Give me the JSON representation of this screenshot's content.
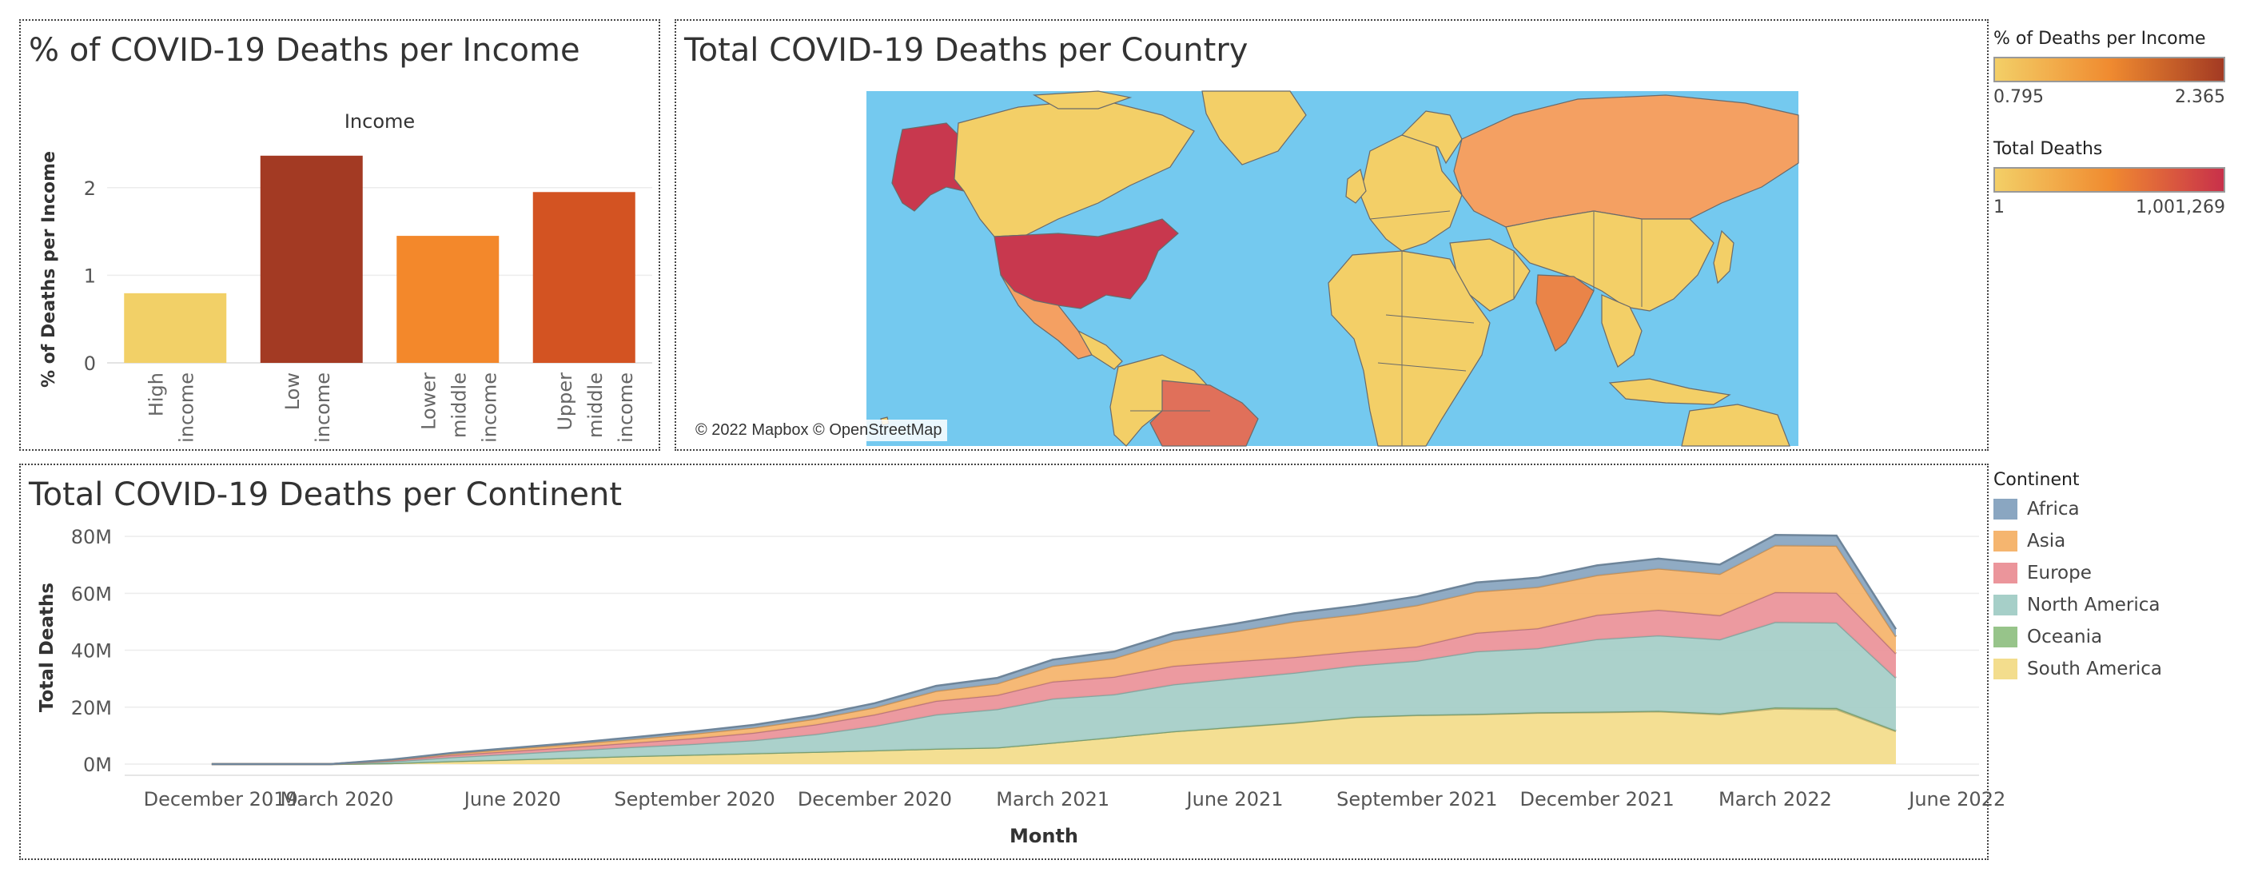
{
  "panels": {
    "income_title": "% of COVID-19 Deaths per Income",
    "map_title": "Total COVID-19 Deaths per Country",
    "continent_title": "Total COVID-19 Deaths per Continent",
    "map_attribution": "© 2022 Mapbox © OpenStreetMap"
  },
  "legends": {
    "income_legend": {
      "title": "% of Deaths per Income",
      "min_label": "0.795",
      "max_label": "2.365",
      "colors": [
        "#f3cf67",
        "#f08b30",
        "#a33a23"
      ]
    },
    "deaths_legend": {
      "title": "Total Deaths",
      "min_label": "1",
      "max_label": "1,001,269",
      "colors": [
        "#f3cf67",
        "#f08b30",
        "#c8304a"
      ]
    },
    "continent_legend": {
      "title": "Continent",
      "items": [
        {
          "label": "Africa",
          "color": "#8aa6c1"
        },
        {
          "label": "Asia",
          "color": "#f5b56f"
        },
        {
          "label": "Europe",
          "color": "#eb959b"
        },
        {
          "label": "North America",
          "color": "#a6cfc8"
        },
        {
          "label": "Oceania",
          "color": "#97c48a"
        },
        {
          "label": "South America",
          "color": "#f3dd8d"
        }
      ]
    }
  },
  "chart_data": [
    {
      "type": "bar",
      "title": "% of COVID-19 Deaths per Income",
      "column_header": "Income",
      "ylabel": "% of Deaths per Income",
      "xlabel": "",
      "categories": [
        [
          "High",
          "income"
        ],
        [
          "Low",
          "income"
        ],
        [
          "Lower",
          "middle",
          "income"
        ],
        [
          "Upper",
          "middle",
          "income"
        ]
      ],
      "values": [
        0.795,
        2.365,
        1.45,
        1.95
      ],
      "colors": [
        "#f2d067",
        "#a33a23",
        "#f3882b",
        "#d35322"
      ],
      "ylim": [
        0,
        2.5
      ],
      "yticks": [
        0,
        1,
        2
      ],
      "grid": true
    },
    {
      "type": "area",
      "title": "Total COVID-19 Deaths per Continent",
      "xlabel": "Month",
      "ylabel": "Total Deaths",
      "xticks": [
        {
          "label": "December 2019",
          "date": "2019-12"
        },
        {
          "label": "March 2020",
          "date": "2020-03"
        },
        {
          "label": "June 2020",
          "date": "2020-06"
        },
        {
          "label": "September 2020",
          "date": "2020-09"
        },
        {
          "label": "December 2020",
          "date": "2020-12"
        },
        {
          "label": "March 2021",
          "date": "2021-03"
        },
        {
          "label": "June 2021",
          "date": "2021-06"
        },
        {
          "label": "September 2021",
          "date": "2021-09"
        },
        {
          "label": "December 2021",
          "date": "2021-12"
        },
        {
          "label": "March 2022",
          "date": "2022-03"
        },
        {
          "label": "June 2022",
          "date": "2022-06"
        }
      ],
      "yticks": [
        {
          "label": "0M",
          "value": 0
        },
        {
          "label": "20M",
          "value": 20
        },
        {
          "label": "40M",
          "value": 40
        },
        {
          "label": "60M",
          "value": 60
        },
        {
          "label": "80M",
          "value": 80
        }
      ],
      "ylim": [
        0,
        82
      ],
      "x": [
        "2020-01",
        "2020-02",
        "2020-03",
        "2020-04",
        "2020-05",
        "2020-06",
        "2020-07",
        "2020-08",
        "2020-09",
        "2020-10",
        "2020-11",
        "2020-12",
        "2021-01",
        "2021-02",
        "2021-03",
        "2021-04",
        "2021-05",
        "2021-06",
        "2021-07",
        "2021-08",
        "2021-09",
        "2021-10",
        "2021-11",
        "2021-12",
        "2022-01",
        "2022-02",
        "2022-03",
        "2022-04",
        "2022-05"
      ],
      "series": [
        {
          "name": "South America",
          "color": "#f3dd8d",
          "values": [
            0,
            0,
            0,
            0.3,
            1.0,
            1.6,
            2.2,
            2.8,
            3.3,
            3.8,
            4.3,
            4.8,
            5.4,
            5.8,
            7.5,
            9.5,
            11.5,
            13.0,
            14.5,
            16.5,
            17.2,
            17.5,
            18.0,
            18.2,
            18.5,
            17.5,
            19.5,
            19.2,
            11.5
          ]
        },
        {
          "name": "Oceania",
          "color": "#97c48a",
          "values": [
            0,
            0,
            0,
            0,
            0,
            0,
            0,
            0,
            0,
            0,
            0,
            0,
            0,
            0,
            0,
            0,
            0,
            0.1,
            0.1,
            0.1,
            0.1,
            0.1,
            0.2,
            0.2,
            0.2,
            0.3,
            0.4,
            0.5,
            0.3
          ]
        },
        {
          "name": "North America",
          "color": "#a6cfc8",
          "values": [
            0,
            0,
            0,
            0.6,
            1.4,
            2.0,
            2.6,
            3.2,
            3.8,
            4.6,
            6.2,
            8.6,
            12.0,
            13.5,
            15.5,
            15.0,
            16.5,
            17.0,
            17.5,
            18.0,
            19.0,
            22.0,
            22.5,
            25.5,
            26.5,
            26.0,
            30.0,
            30.0,
            18.5
          ]
        },
        {
          "name": "Europe",
          "color": "#eb959b",
          "values": [
            0,
            0,
            0,
            0.4,
            0.8,
            1.0,
            1.2,
            1.5,
            2.0,
            2.6,
            3.4,
            4.0,
            4.8,
            5.0,
            6.0,
            6.2,
            6.5,
            6.0,
            5.5,
            5.0,
            5.0,
            6.5,
            7.0,
            8.5,
            9.0,
            8.5,
            10.5,
            10.5,
            8.5
          ]
        },
        {
          "name": "Asia",
          "color": "#f5b56f",
          "values": [
            0,
            0,
            0,
            0.2,
            0.5,
            0.8,
            1.0,
            1.3,
            1.6,
            1.8,
            2.0,
            2.5,
            3.5,
            4.0,
            5.5,
            6.5,
            9.0,
            10.5,
            12.5,
            13.0,
            14.5,
            14.5,
            14.5,
            14.0,
            14.5,
            14.5,
            16.5,
            16.5,
            6.0
          ]
        },
        {
          "name": "Africa",
          "color": "#8aa6c1",
          "values": [
            0,
            0,
            0,
            0.1,
            0.2,
            0.3,
            0.4,
            0.6,
            0.8,
            1.0,
            1.2,
            1.5,
            1.8,
            2.0,
            2.2,
            2.3,
            2.5,
            2.7,
            2.9,
            3.0,
            3.1,
            3.2,
            3.3,
            3.4,
            3.5,
            3.3,
            3.6,
            3.6,
            2.6
          ]
        }
      ],
      "stacked": true,
      "grid": true
    },
    {
      "type": "map",
      "title": "Total COVID-19 Deaths per Country",
      "color_ramp": [
        "#f3cf67",
        "#f08b30",
        "#c8304a"
      ],
      "ocean_color": "#74c9ef",
      "value_range": [
        1,
        1001269
      ]
    }
  ]
}
